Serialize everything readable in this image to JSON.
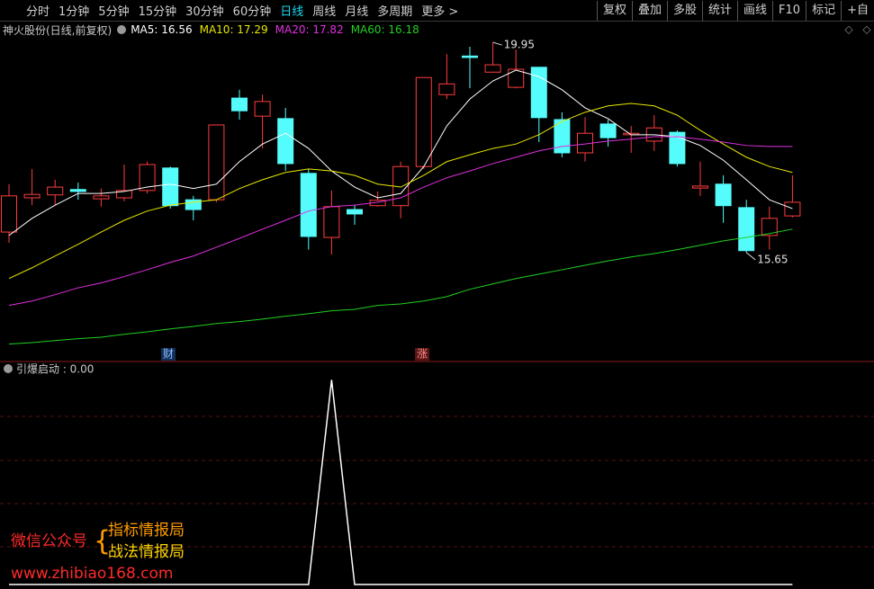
{
  "toolbar": {
    "left": [
      "分时",
      "1分钟",
      "5分钟",
      "15分钟",
      "30分钟",
      "60分钟",
      "日线",
      "周线",
      "月线",
      "多周期",
      "更多 >"
    ],
    "active_index": 6,
    "right": [
      "复权",
      "叠加",
      "多股",
      "统计",
      "画线",
      "F10",
      "标记",
      "+自"
    ]
  },
  "chart_data": [
    {
      "type": "candlestick",
      "title": "神火股份(日线,前复权)",
      "ylim": [
        13.46,
        20.08
      ],
      "up_color": "#ff3c3c",
      "down_color": "#54fcfc",
      "open": [
        16.07,
        16.77,
        16.83,
        16.94,
        16.75,
        16.77,
        16.92,
        17.38,
        16.73,
        16.73,
        18.81,
        18.44,
        18.39,
        17.27,
        15.96,
        16.53,
        16.61,
        16.61,
        17.41,
        18.88,
        19.67,
        19.34,
        19.03,
        19.44,
        18.37,
        17.69,
        18.28,
        18.06,
        17.93,
        18.11,
        16.97,
        17.05,
        16.57,
        16.0,
        16.4
      ],
      "high": [
        17.05,
        17.36,
        17.14,
        17.08,
        16.96,
        17.45,
        17.51,
        17.41,
        16.81,
        18.26,
        18.98,
        18.88,
        18.61,
        17.36,
        16.92,
        16.62,
        16.9,
        17.51,
        19.23,
        19.71,
        19.86,
        19.95,
        19.8,
        19.44,
        18.52,
        18.42,
        18.37,
        18.24,
        18.46,
        18.15,
        17.51,
        17.23,
        16.73,
        16.59,
        17.23
      ],
      "low": [
        15.85,
        16.62,
        16.62,
        16.73,
        16.59,
        16.7,
        16.86,
        16.55,
        16.31,
        16.68,
        18.37,
        17.78,
        17.32,
        15.71,
        15.61,
        16.22,
        16.59,
        16.35,
        17.36,
        18.79,
        19.01,
        19.34,
        19.01,
        17.91,
        17.6,
        17.51,
        17.82,
        17.69,
        17.73,
        17.41,
        16.81,
        16.26,
        15.65,
        15.71,
        16.37
      ],
      "close": [
        16.81,
        16.84,
        16.99,
        16.9,
        16.81,
        16.92,
        17.45,
        16.61,
        16.53,
        18.26,
        18.55,
        18.74,
        17.47,
        15.98,
        16.59,
        16.44,
        16.72,
        17.41,
        19.23,
        19.1,
        19.64,
        19.49,
        19.4,
        18.41,
        17.69,
        18.09,
        18.0,
        18.09,
        18.2,
        17.47,
        17.01,
        16.61,
        15.69,
        16.35,
        16.68
      ],
      "annotations": [
        19.95,
        15.65
      ],
      "series": [
        {
          "label": "MA5: 16.56",
          "color": "#ffffff",
          "values": [
            16.0,
            16.35,
            16.62,
            16.86,
            16.86,
            16.9,
            16.99,
            17.05,
            16.96,
            17.05,
            17.51,
            17.87,
            18.09,
            17.78,
            17.32,
            16.99,
            16.77,
            16.86,
            17.41,
            18.24,
            18.79,
            19.16,
            19.38,
            19.25,
            18.98,
            18.61,
            18.39,
            18.06,
            18.06,
            18.02,
            17.84,
            17.54,
            17.14,
            16.73,
            16.55
          ]
        },
        {
          "label": "MA10: 17.29",
          "color": "#e8e800",
          "values": [
            15.12,
            15.34,
            15.58,
            15.82,
            16.07,
            16.31,
            16.5,
            16.62,
            16.68,
            16.73,
            16.96,
            17.14,
            17.29,
            17.36,
            17.32,
            17.23,
            17.05,
            16.99,
            17.23,
            17.51,
            17.65,
            17.78,
            17.87,
            18.06,
            18.33,
            18.52,
            18.65,
            18.7,
            18.65,
            18.46,
            18.15,
            17.87,
            17.6,
            17.41,
            17.29
          ]
        },
        {
          "label": "MA20: 17.82",
          "color": "#e030e0",
          "values": [
            14.57,
            14.66,
            14.79,
            14.93,
            15.03,
            15.16,
            15.3,
            15.45,
            15.58,
            15.76,
            15.94,
            16.13,
            16.31,
            16.5,
            16.59,
            16.62,
            16.68,
            16.77,
            16.99,
            17.18,
            17.32,
            17.47,
            17.6,
            17.73,
            17.82,
            17.87,
            17.93,
            17.97,
            18.02,
            18.02,
            17.97,
            17.91,
            17.84,
            17.82,
            17.82
          ]
        },
        {
          "label": "MA60: 16.18",
          "color": "#20d020",
          "values": [
            13.78,
            13.81,
            13.85,
            13.89,
            13.92,
            13.98,
            14.03,
            14.09,
            14.14,
            14.2,
            14.24,
            14.29,
            14.35,
            14.4,
            14.46,
            14.49,
            14.57,
            14.6,
            14.66,
            14.75,
            14.9,
            15.01,
            15.12,
            15.21,
            15.3,
            15.39,
            15.48,
            15.56,
            15.63,
            15.71,
            15.8,
            15.89,
            15.96,
            16.04,
            16.13
          ]
        }
      ]
    },
    {
      "type": "line",
      "title": "引爆启动 : 0.00",
      "color": "#ffffff",
      "ylim": [
        0,
        1.09
      ],
      "values": [
        0,
        0,
        0,
        0,
        0,
        0,
        0,
        0,
        0,
        0,
        0,
        0,
        0,
        0,
        1,
        0,
        0,
        0,
        0,
        0,
        0,
        0,
        0,
        0,
        0,
        0,
        0,
        0,
        0,
        0,
        0,
        0,
        0,
        0,
        0
      ]
    }
  ],
  "markers": [
    "财",
    "涨"
  ],
  "watermark": {
    "account": "微信公众号",
    "names": [
      "指标情报局",
      "战法情报局"
    ],
    "url": "www.zhibiao168.com"
  }
}
